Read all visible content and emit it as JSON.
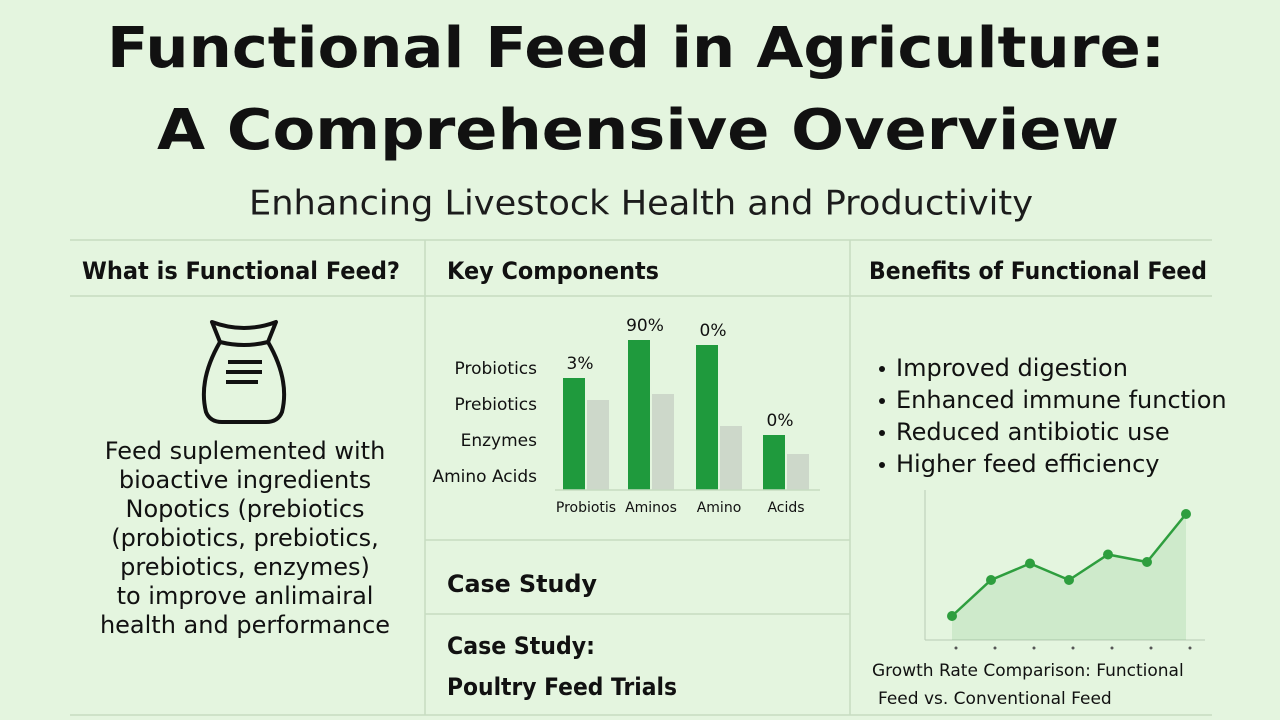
{
  "header": {
    "title_line1": "Functional Feed in Agriculture:",
    "title_line2": "A Comprehensive Overview",
    "subtitle": "Enhancing Livestock Health and Productivity"
  },
  "what_is": {
    "heading": "What is Functional Feed?",
    "lines": [
      "Feed suplemented with",
      "bioactive ingredients",
      "Nopotics (prebiotics",
      "(probiotics, prebiotics,",
      "prebiotics, enzymes)",
      "to improve anlimairal",
      "health and performance"
    ]
  },
  "key_components": {
    "heading": "Key Components",
    "chart_data": {
      "type": "bar",
      "categories": [
        "Probiotis",
        "Aminos",
        "Amino",
        "Acids"
      ],
      "side_labels": [
        "Probiotics",
        "Prebiotics",
        "Enzymes",
        "Amino Acids"
      ],
      "annotations": [
        "3%",
        "90%",
        "0%",
        "0%"
      ],
      "series": [
        {
          "color": "#1f9a3d",
          "values": [
            112,
            150,
            145,
            55
          ]
        },
        {
          "color": "#cdd8ca",
          "values": [
            90,
            96,
            64,
            36
          ]
        }
      ],
      "ylim": [
        0,
        160
      ]
    }
  },
  "case_study": {
    "heading": "Case Study",
    "line1": "Case Study:",
    "line2": "Poultry Feed Trials"
  },
  "benefits": {
    "heading": "Benefits of Functional Feed",
    "bullets": [
      "Improved digestion",
      "Enhanced immune function",
      "Reduced antibiotic use",
      "Higher feed efficiency"
    ],
    "chart_data": {
      "type": "line",
      "categories": [
        null,
        null,
        null,
        null,
        null,
        null,
        null
      ],
      "series": [
        {
          "color": "#2e9e3e",
          "values": [
            16,
            40,
            51,
            40,
            57,
            52,
            84
          ]
        }
      ],
      "ylim": [
        0,
        100
      ]
    },
    "caption": [
      "Growth Rate Comparison: Functional",
      "Feed vs. Conventional Feed"
    ]
  }
}
